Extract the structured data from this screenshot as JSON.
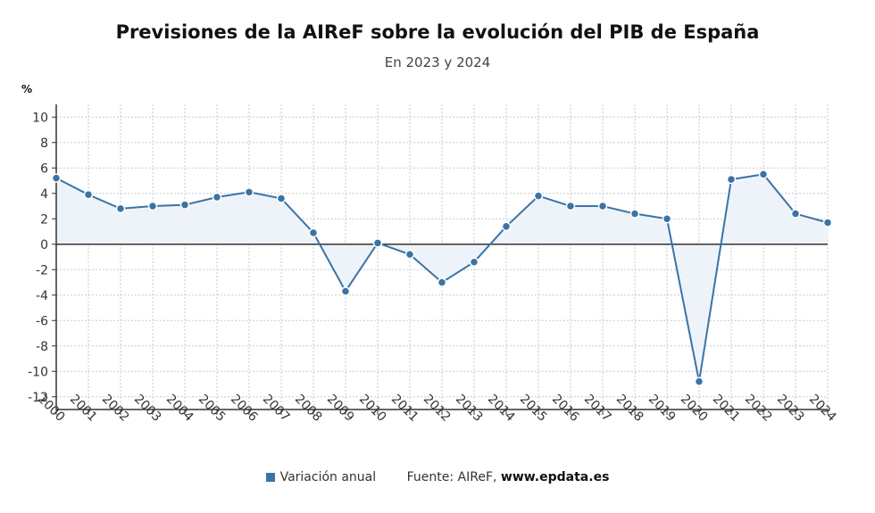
{
  "header": {
    "title": "Previsiones de la AIReF sobre la evolución del PIB de España",
    "subtitle": "En 2023 y 2024",
    "unit": "%"
  },
  "footer": {
    "legend_label": "Variación anual",
    "source_prefix": "Fuente: AIReF,",
    "source_site": "www.epdata.es"
  },
  "colors": {
    "line": "#3a74a6",
    "area": "#eef3fa",
    "grid": "#c8c8c8",
    "axis": "#333333"
  },
  "chart_data": {
    "type": "line",
    "title": "Previsiones de la AIReF sobre la evolución del PIB de España",
    "subtitle": "En 2023 y 2024",
    "ylabel": "%",
    "xlabel": "",
    "ylim": [
      -13,
      11
    ],
    "yticks": [
      10,
      8,
      6,
      4,
      2,
      0,
      -2,
      -4,
      -6,
      -8,
      -10,
      -12
    ],
    "grid": true,
    "legend_position": "bottom",
    "categories": [
      "2000",
      "2001",
      "2002",
      "2003",
      "2004",
      "2005",
      "2006",
      "2007",
      "2008",
      "2009",
      "2010",
      "2011",
      "2012",
      "2013",
      "2014",
      "2015",
      "2016",
      "2017",
      "2018",
      "2019",
      "2020",
      "2021",
      "2022",
      "2023",
      "2024"
    ],
    "series": [
      {
        "name": "Variación anual",
        "values": [
          5.2,
          3.9,
          2.8,
          3.0,
          3.1,
          3.7,
          4.1,
          3.6,
          0.9,
          -3.7,
          0.1,
          -0.8,
          -3.0,
          -1.4,
          1.4,
          3.8,
          3.0,
          3.0,
          2.4,
          2.0,
          -10.8,
          5.1,
          5.5,
          2.4,
          1.7
        ]
      }
    ]
  }
}
